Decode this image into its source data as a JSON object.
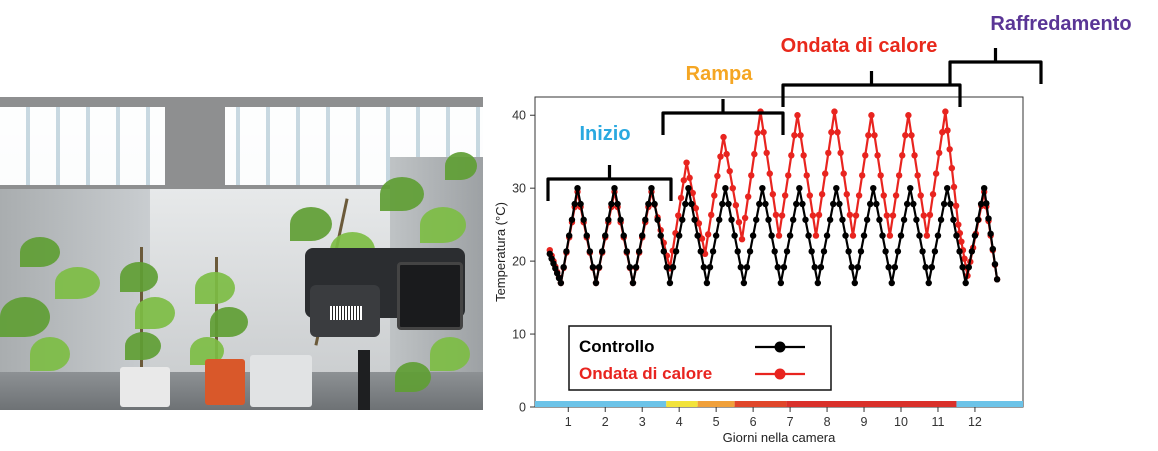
{
  "photo": {
    "description_icon": "thermal-camera-photo"
  },
  "chart_data": {
    "type": "line",
    "xlabel": "Giorni nella camera",
    "ylabel": "Temperatura (°C)",
    "xlim": [
      0.1,
      13.3
    ],
    "ylim": [
      0,
      42.5
    ],
    "x_ticks": [
      1,
      2,
      3,
      4,
      5,
      6,
      7,
      8,
      9,
      10,
      11,
      12
    ],
    "y_ticks": [
      0,
      10,
      20,
      30,
      40
    ],
    "grid": false,
    "legend_position": "bottom-left",
    "series": [
      {
        "name": "Controllo",
        "color": "#000000",
        "marker": "circle",
        "points": [
          [
            0.5,
            21
          ],
          [
            0.8,
            17
          ],
          [
            1.25,
            30
          ],
          [
            1.75,
            17
          ],
          [
            2.25,
            30
          ],
          [
            2.75,
            17
          ],
          [
            3.25,
            30
          ],
          [
            3.75,
            17
          ],
          [
            4.25,
            30
          ],
          [
            4.75,
            17
          ],
          [
            5.25,
            30
          ],
          [
            5.75,
            17
          ],
          [
            6.25,
            30
          ],
          [
            6.75,
            17
          ],
          [
            7.25,
            30
          ],
          [
            7.75,
            17
          ],
          [
            8.25,
            30
          ],
          [
            8.75,
            17
          ],
          [
            9.25,
            30
          ],
          [
            9.75,
            17
          ],
          [
            10.25,
            30
          ],
          [
            10.75,
            17
          ],
          [
            11.25,
            30
          ],
          [
            11.75,
            17
          ],
          [
            12.25,
            30
          ],
          [
            12.6,
            17.5
          ]
        ]
      },
      {
        "name": "Ondata di calore",
        "color": "#e8241f",
        "marker": "circle",
        "points": [
          [
            0.5,
            21.5
          ],
          [
            0.8,
            17
          ],
          [
            1.25,
            29.5
          ],
          [
            1.75,
            17
          ],
          [
            2.25,
            29.5
          ],
          [
            2.75,
            17
          ],
          [
            3.25,
            29.5
          ],
          [
            3.75,
            19
          ],
          [
            4.2,
            33.5
          ],
          [
            4.7,
            21
          ],
          [
            5.2,
            37
          ],
          [
            5.7,
            23
          ],
          [
            6.2,
            40.5
          ],
          [
            6.7,
            23.5
          ],
          [
            7.2,
            40
          ],
          [
            7.7,
            23.5
          ],
          [
            8.2,
            40.5
          ],
          [
            8.7,
            23.5
          ],
          [
            9.2,
            40
          ],
          [
            9.7,
            23.5
          ],
          [
            10.2,
            40
          ],
          [
            10.7,
            23.5
          ],
          [
            11.2,
            40.5
          ],
          [
            11.55,
            25
          ],
          [
            11.8,
            18
          ],
          [
            12.25,
            29.5
          ],
          [
            12.6,
            17.5
          ]
        ]
      }
    ],
    "phases": [
      {
        "label": "Inizio",
        "color": "#2aa9e0",
        "start": 0.1,
        "end": 3.65,
        "bar_color": "#6cc3e8"
      },
      {
        "label": "Rampa",
        "color": "#f5a623",
        "start": 3.65,
        "end": 6.9,
        "bar_segments": [
          {
            "start": 3.65,
            "end": 4.5,
            "color": "#f2e33a"
          },
          {
            "start": 4.5,
            "end": 5.5,
            "color": "#f0a03a"
          },
          {
            "start": 5.5,
            "end": 6.9,
            "color": "#e0462a"
          }
        ]
      },
      {
        "label": "Ondata di calore",
        "color": "#e8291c",
        "start": 6.9,
        "end": 11.5,
        "bar_color": "#d9302a"
      },
      {
        "label": "Raffredamento",
        "color": "#5a3596",
        "start": 11.5,
        "end": 13.3,
        "bar_color": "#6cc3e8"
      }
    ],
    "legend": [
      {
        "label": "Controllo",
        "color": "#000000"
      },
      {
        "label": "Ondata di calore",
        "color": "#e8241f"
      }
    ]
  }
}
